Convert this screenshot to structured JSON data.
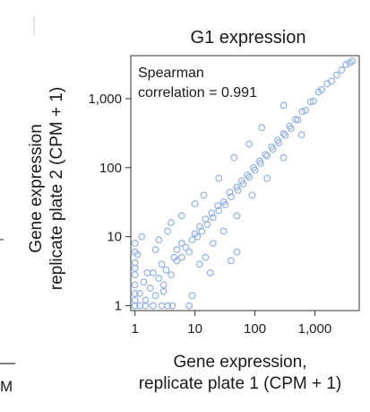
{
  "fragments": {
    "left_label": "M"
  },
  "chart_data": {
    "type": "scatter",
    "title": "G1 expression",
    "xlabel_lines": [
      "Gene expression,",
      "replicate plate 1 (CPM + 1)"
    ],
    "ylabel_lines": [
      "Gene expression",
      "replicate plate 2 (CPM + 1)"
    ],
    "x_scale": "log",
    "y_scale": "log",
    "xlim": [
      0.85,
      5500
    ],
    "ylim": [
      0.85,
      4200
    ],
    "x_ticks": [
      1,
      10,
      100,
      1000
    ],
    "x_tick_labels": [
      "1",
      "10",
      "100",
      "1,000"
    ],
    "y_ticks": [
      1,
      10,
      100,
      1000
    ],
    "y_tick_labels": [
      "1",
      "10",
      "100",
      "1,000"
    ],
    "annotation_lines": [
      "Spearman",
      "correlation = 0.991"
    ],
    "spearman_correlation": 0.991,
    "point_color": "#8eaee0",
    "grid": false,
    "points": [
      [
        1,
        1
      ],
      [
        1,
        1.2
      ],
      [
        1,
        1.5
      ],
      [
        1,
        2
      ],
      [
        1,
        2.8
      ],
      [
        1,
        3.5
      ],
      [
        1,
        4.2
      ],
      [
        1.2,
        1
      ],
      [
        1.5,
        1
      ],
      [
        2,
        1
      ],
      [
        2.8,
        1
      ],
      [
        3.5,
        1
      ],
      [
        4.2,
        1
      ],
      [
        1.2,
        1.5
      ],
      [
        1.5,
        1.2
      ],
      [
        1.4,
        2.2
      ],
      [
        2.2,
        1.4
      ],
      [
        1.8,
        1.8
      ],
      [
        2.5,
        2.5
      ],
      [
        3,
        2
      ],
      [
        2,
        3
      ],
      [
        3.3,
        3.3
      ],
      [
        4,
        2.8
      ],
      [
        2.8,
        4
      ],
      [
        5,
        4.5
      ],
      [
        4.5,
        5
      ],
      [
        6,
        5
      ],
      [
        5,
        6.5
      ],
      [
        7,
        7
      ],
      [
        8,
        6
      ],
      [
        6,
        8
      ],
      [
        9,
        9
      ],
      [
        10,
        11
      ],
      [
        11,
        10
      ],
      [
        13,
        12
      ],
      [
        12,
        14
      ],
      [
        16,
        15
      ],
      [
        15,
        18
      ],
      [
        20,
        19
      ],
      [
        19,
        22
      ],
      [
        25,
        24
      ],
      [
        24,
        28
      ],
      [
        30,
        32
      ],
      [
        32,
        29
      ],
      [
        40,
        38
      ],
      [
        38,
        44
      ],
      [
        50,
        52
      ],
      [
        52,
        47
      ],
      [
        60,
        64
      ],
      [
        64,
        58
      ],
      [
        75,
        78
      ],
      [
        80,
        73
      ],
      [
        95,
        100
      ],
      [
        100,
        92
      ],
      [
        120,
        125
      ],
      [
        125,
        115
      ],
      [
        150,
        155
      ],
      [
        160,
        148
      ],
      [
        190,
        200
      ],
      [
        200,
        185
      ],
      [
        240,
        250
      ],
      [
        250,
        230
      ],
      [
        300,
        310
      ],
      [
        320,
        295
      ],
      [
        380,
        400
      ],
      [
        400,
        370
      ],
      [
        480,
        500
      ],
      [
        520,
        490
      ],
      [
        620,
        650
      ],
      [
        700,
        680
      ],
      [
        850,
        900
      ],
      [
        950,
        920
      ],
      [
        1150,
        1250
      ],
      [
        1300,
        1350
      ],
      [
        1600,
        1650
      ],
      [
        1900,
        1800
      ],
      [
        2300,
        2200
      ],
      [
        2800,
        2600
      ],
      [
        3300,
        3100
      ],
      [
        3800,
        3300
      ],
      [
        4200,
        3500
      ],
      [
        3.5,
        12
      ],
      [
        4,
        16
      ],
      [
        2.5,
        9
      ],
      [
        6,
        20
      ],
      [
        12,
        4
      ],
      [
        15,
        5
      ],
      [
        20,
        8
      ],
      [
        30,
        12
      ],
      [
        10,
        30
      ],
      [
        14,
        40
      ],
      [
        50,
        20
      ],
      [
        25,
        70
      ],
      [
        90,
        40
      ],
      [
        45,
        140
      ],
      [
        160,
        70
      ],
      [
        80,
        220
      ],
      [
        300,
        140
      ],
      [
        130,
        380
      ],
      [
        600,
        300
      ],
      [
        300,
        800
      ],
      [
        1,
        6
      ],
      [
        1,
        8
      ],
      [
        1.3,
        10
      ],
      [
        8,
        1
      ],
      [
        9,
        1.4
      ],
      [
        3,
        1.6
      ],
      [
        1.6,
        3
      ],
      [
        50,
        6
      ],
      [
        40,
        4.5
      ],
      [
        18,
        3
      ],
      [
        2.2,
        6.5
      ],
      [
        1.1,
        5.5
      ]
    ]
  }
}
